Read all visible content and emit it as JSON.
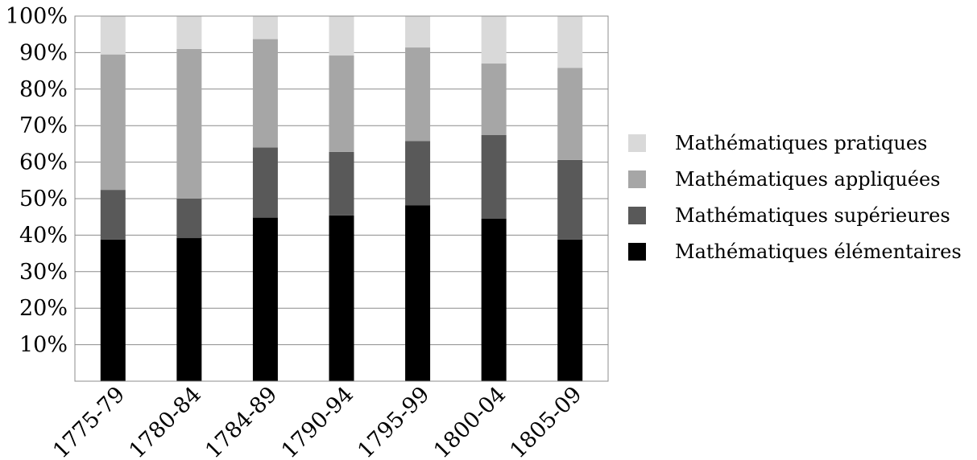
{
  "chart_data": {
    "type": "bar",
    "stacked": true,
    "normalized": true,
    "title": "",
    "xlabel": "",
    "ylabel": "",
    "ylim": [
      0,
      100
    ],
    "y_ticks": [
      "10%",
      "20%",
      "30%",
      "40%",
      "50%",
      "60%",
      "70%",
      "80%",
      "90%",
      "100%"
    ],
    "y_tick_values": [
      10,
      20,
      30,
      40,
      50,
      60,
      70,
      80,
      90,
      100
    ],
    "grid": true,
    "legend_position": "right",
    "categories": [
      "1775-79",
      "1780-84",
      "1784-89",
      "1790-94",
      "1795-99",
      "1800-04",
      "1805-09"
    ],
    "series": [
      {
        "name": "Mathématiques élémentaires",
        "color": "#000000",
        "values": [
          38.8,
          39.2,
          44.8,
          45.4,
          48.2,
          44.5,
          38.8
        ]
      },
      {
        "name": "Mathématiques supérieures",
        "color": "#595959",
        "values": [
          13.6,
          10.8,
          19.2,
          17.4,
          17.6,
          22.9,
          21.8
        ]
      },
      {
        "name": "Mathématiques appliquées",
        "color": "#a6a6a6",
        "values": [
          37.1,
          41.0,
          29.7,
          26.4,
          25.6,
          19.6,
          25.2
        ]
      },
      {
        "name": "Mathématiques pratiques",
        "color": "#d9d9d9",
        "values": [
          10.5,
          9.0,
          6.3,
          10.8,
          8.6,
          13.0,
          14.2
        ]
      }
    ],
    "legend_order": [
      3,
      2,
      1,
      0
    ]
  }
}
